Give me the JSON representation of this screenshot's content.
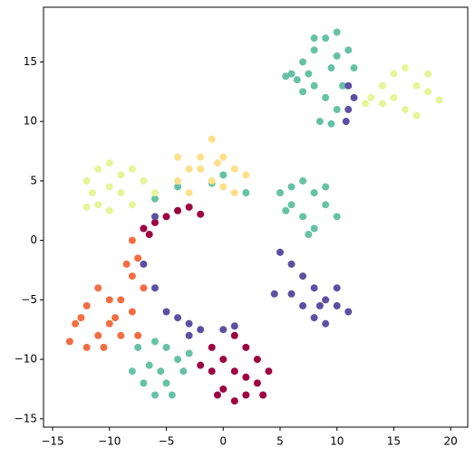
{
  "chart_data": {
    "type": "scatter",
    "xlim": [
      -15.8,
      21.5
    ],
    "ylim": [
      -15.7,
      19.6
    ],
    "xticks": [
      {
        "value": -15,
        "label": "−15"
      },
      {
        "value": -10,
        "label": "−10"
      },
      {
        "value": -5,
        "label": "−5"
      },
      0,
      5,
      10,
      15,
      20
    ],
    "yticks": [
      {
        "value": -15,
        "label": "−15"
      },
      {
        "value": -10,
        "label": "−10"
      },
      {
        "value": -5,
        "label": "−5"
      },
      0,
      5,
      10,
      15
    ],
    "series": [
      {
        "color": "#66c2a5",
        "x": [
          6,
          7,
          8,
          9,
          10,
          11,
          8,
          9,
          10,
          7,
          6.5,
          9.5,
          8.5,
          9.5,
          10.5,
          7.5,
          11.5,
          10,
          8,
          5.5,
          5,
          6,
          7,
          8,
          9,
          10,
          8,
          7,
          6,
          9,
          7.5,
          5.5,
          -7.5,
          -6,
          -5,
          -4,
          -3.5,
          -5,
          -6,
          -7,
          -8,
          -4.5,
          -6.5,
          -3,
          -5.5,
          -4,
          -1,
          2,
          -6,
          0
        ],
        "values": [
          14,
          15,
          16,
          17,
          17.5,
          16,
          13,
          12,
          11,
          12.5,
          13.5,
          14.5,
          10,
          9.8,
          13,
          14,
          14.5,
          15.5,
          17,
          13.8,
          4,
          4.5,
          5,
          4,
          3,
          2,
          1,
          2,
          3,
          4.5,
          0.5,
          2.5,
          -9,
          -8.5,
          -9,
          -10,
          -11,
          -12,
          -13,
          -12,
          -11,
          -13,
          -10.5,
          -9.5,
          -11,
          4.5,
          4.8,
          4,
          3.5,
          5.5
        ]
      },
      {
        "color": "#e6f598",
        "x": [
          13,
          14,
          15,
          16,
          17,
          18,
          16,
          17,
          15,
          14,
          19,
          12.5,
          18,
          -12,
          -11,
          -10,
          -9,
          -8,
          -11,
          -10,
          -9,
          -7,
          -8,
          -11.5,
          -12,
          -6,
          -10
        ],
        "values": [
          12,
          13,
          14,
          14.5,
          13,
          12.5,
          11,
          10.5,
          12,
          11.5,
          11.8,
          11.5,
          14,
          5,
          6,
          6.5,
          5.5,
          6,
          3,
          2.5,
          4,
          5,
          3,
          4,
          2.8,
          4,
          4.5
        ]
      },
      {
        "color": "#fee08b",
        "x": [
          -4,
          -3,
          -2,
          -1,
          0,
          1,
          2,
          -3,
          -1,
          0,
          -2,
          1,
          -4,
          -0.5
        ],
        "values": [
          5,
          6,
          7,
          8.5,
          7,
          6,
          5.5,
          4,
          5,
          4.5,
          6,
          4,
          7,
          6.5
        ]
      },
      {
        "color": "#9e0142",
        "x": [
          -7,
          -6,
          -5,
          -4,
          -3,
          -2,
          -6.5,
          -1,
          0,
          1,
          2,
          3,
          4,
          3,
          2,
          1,
          0,
          -1,
          -2,
          1,
          3.5,
          2,
          -0.5
        ],
        "values": [
          1,
          1.5,
          2,
          2.5,
          2.8,
          2.2,
          0.5,
          -9,
          -10,
          -8,
          -9,
          -10,
          -11,
          -12,
          -13,
          -13.5,
          -12.5,
          -11,
          -10.5,
          -11,
          -13,
          -11.5,
          -13
        ]
      },
      {
        "color": "#f46d43",
        "x": [
          -8,
          -7.5,
          -8,
          -7,
          -9,
          -10,
          -11,
          -12,
          -13,
          -13.5,
          -12,
          -11,
          -10,
          -9,
          -8,
          -12.5,
          -10.5,
          -7.5,
          -8.5,
          -9.5
        ],
        "values": [
          0,
          -1.5,
          -3,
          -4,
          -5,
          -5,
          -4,
          -5.5,
          -7,
          -8.5,
          -9,
          -8,
          -7,
          -8,
          -6,
          -6.5,
          -9,
          -8,
          -2,
          -6.5
        ]
      },
      {
        "color": "#5e4fa2",
        "x": [
          6,
          7,
          8,
          9,
          10,
          11,
          8,
          9,
          7,
          6,
          10,
          5,
          4.5,
          8.5,
          -6,
          -5,
          -4,
          -3,
          -2,
          0,
          1,
          -3,
          -7,
          -6,
          11,
          11.5,
          10.8,
          11
        ],
        "values": [
          -2,
          -3,
          -4,
          -5,
          -5.5,
          -6,
          -6.5,
          -7,
          -5.5,
          -4.5,
          -4,
          -1,
          -4.5,
          -5.5,
          -4,
          -6,
          -6.5,
          -7,
          -7.5,
          -7.5,
          -7.2,
          -8,
          -2,
          2,
          11,
          12,
          10,
          13
        ]
      }
    ]
  }
}
